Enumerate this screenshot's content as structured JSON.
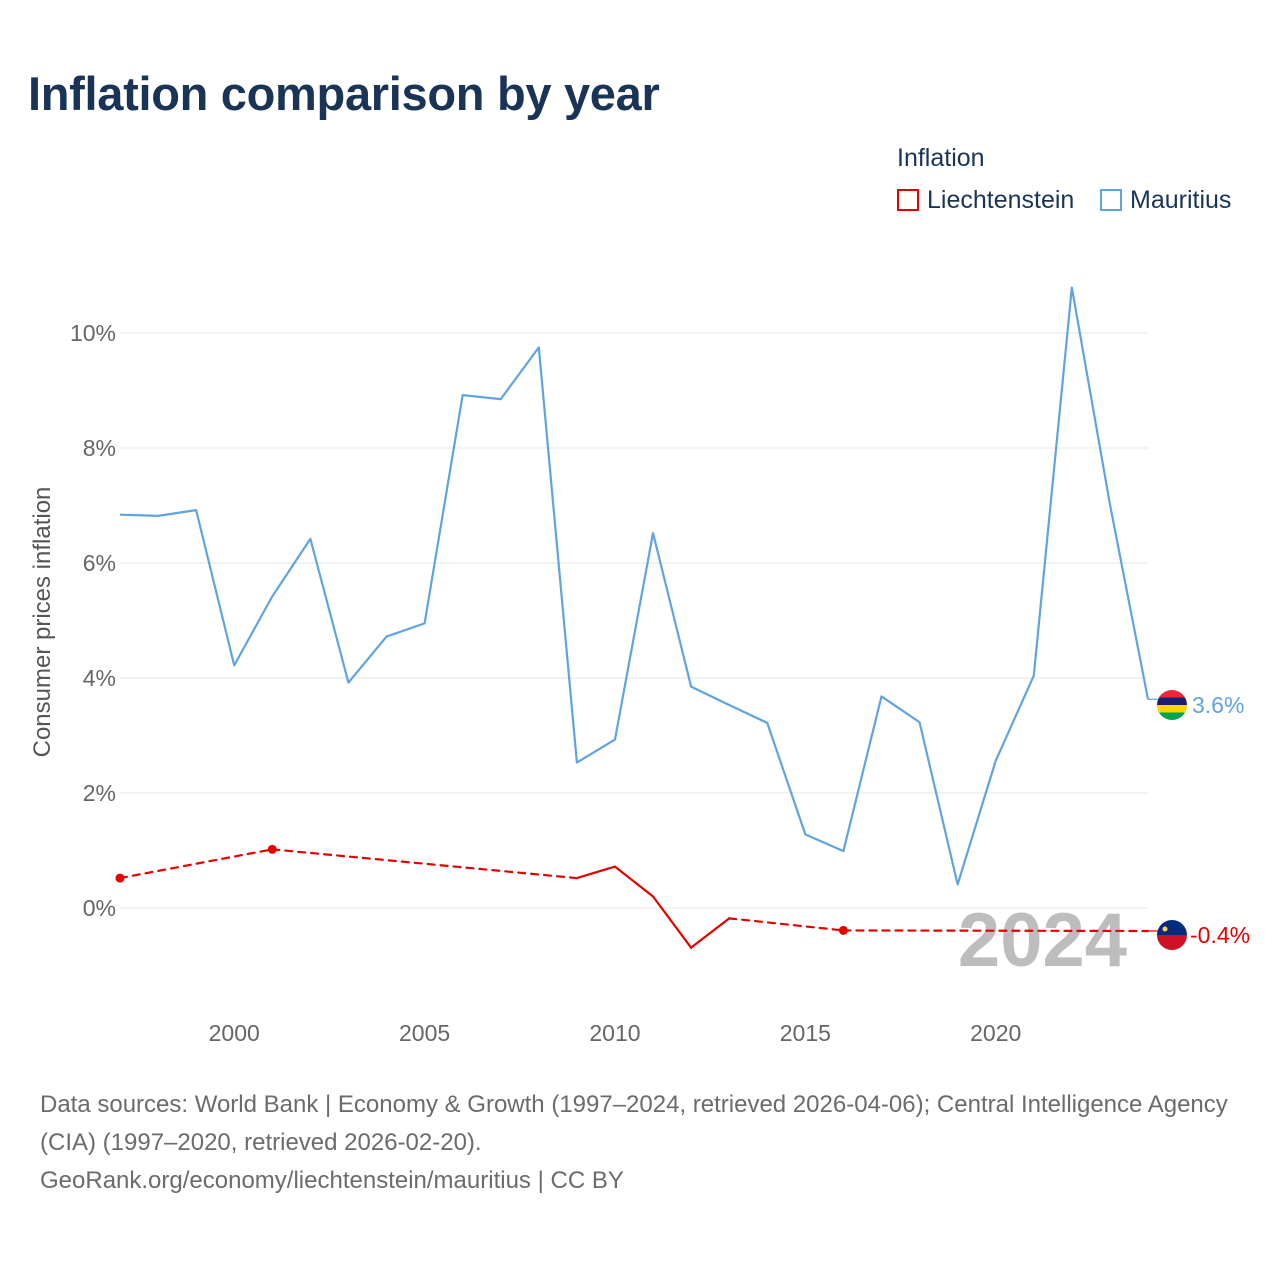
{
  "title": "Inflation comparison by year",
  "legend": {
    "title": "Inflation",
    "items": [
      {
        "label": "Liechtenstein",
        "color": "#e60000"
      },
      {
        "label": "Mauritius",
        "color": "#5fa3e0"
      }
    ]
  },
  "source": {
    "line1": "Data sources: World Bank | Economy & Growth (1997–2024, retrieved 2026-04-06); Central Intelligence Agency (CIA) (1997–2020, retrieved 2026-02-20).",
    "line2": "GeoRank.org/economy/liechtenstein/mauritius | CC BY"
  },
  "chart_data": {
    "type": "line",
    "title": "Inflation comparison by year",
    "xlabel": "",
    "ylabel": "Consumer prices inflation",
    "xlim": [
      1997,
      2024
    ],
    "ylim": [
      -1.6,
      11.2
    ],
    "y_ticks": [
      0,
      2,
      4,
      6,
      8,
      10
    ],
    "y_tick_labels": [
      "0%",
      "2%",
      "4%",
      "6%",
      "8%",
      "10%"
    ],
    "x_ticks": [
      2000,
      2005,
      2010,
      2015,
      2020
    ],
    "x_tick_labels": [
      "2000",
      "2005",
      "2010",
      "2015",
      "2020"
    ],
    "grid": true,
    "watermark_year": "2024",
    "series": [
      {
        "name": "Mauritius",
        "color": "#5fa3e0",
        "x": [
          1997,
          1998,
          1999,
          2000,
          2001,
          2002,
          2003,
          2004,
          2005,
          2006,
          2007,
          2008,
          2009,
          2010,
          2011,
          2012,
          2013,
          2014,
          2015,
          2016,
          2017,
          2018,
          2019,
          2020,
          2021,
          2022,
          2023,
          2024
        ],
        "values": [
          6.84,
          6.82,
          6.92,
          4.22,
          5.42,
          6.42,
          3.92,
          4.72,
          4.95,
          8.92,
          8.85,
          9.75,
          2.53,
          2.93,
          6.52,
          3.85,
          3.53,
          3.22,
          1.28,
          0.99,
          3.68,
          3.23,
          0.41,
          2.56,
          4.04,
          10.79,
          7.02,
          3.63
        ],
        "end_label": "3.6%"
      },
      {
        "name": "Liechtenstein",
        "color": "#e60000",
        "x": [
          1997,
          2001,
          2009,
          2010,
          2011,
          2012,
          2013,
          2016,
          2024
        ],
        "values": [
          0.52,
          1.02,
          0.52,
          0.72,
          0.2,
          -0.69,
          -0.18,
          -0.39,
          -0.4
        ],
        "dashed_segments": [
          [
            1997,
            2001
          ],
          [
            2001,
            2009
          ],
          [
            2013,
            2016
          ],
          [
            2016,
            2024
          ]
        ],
        "markers_at": [
          1997,
          2001,
          2016
        ],
        "end_label": "-0.4%"
      }
    ]
  }
}
